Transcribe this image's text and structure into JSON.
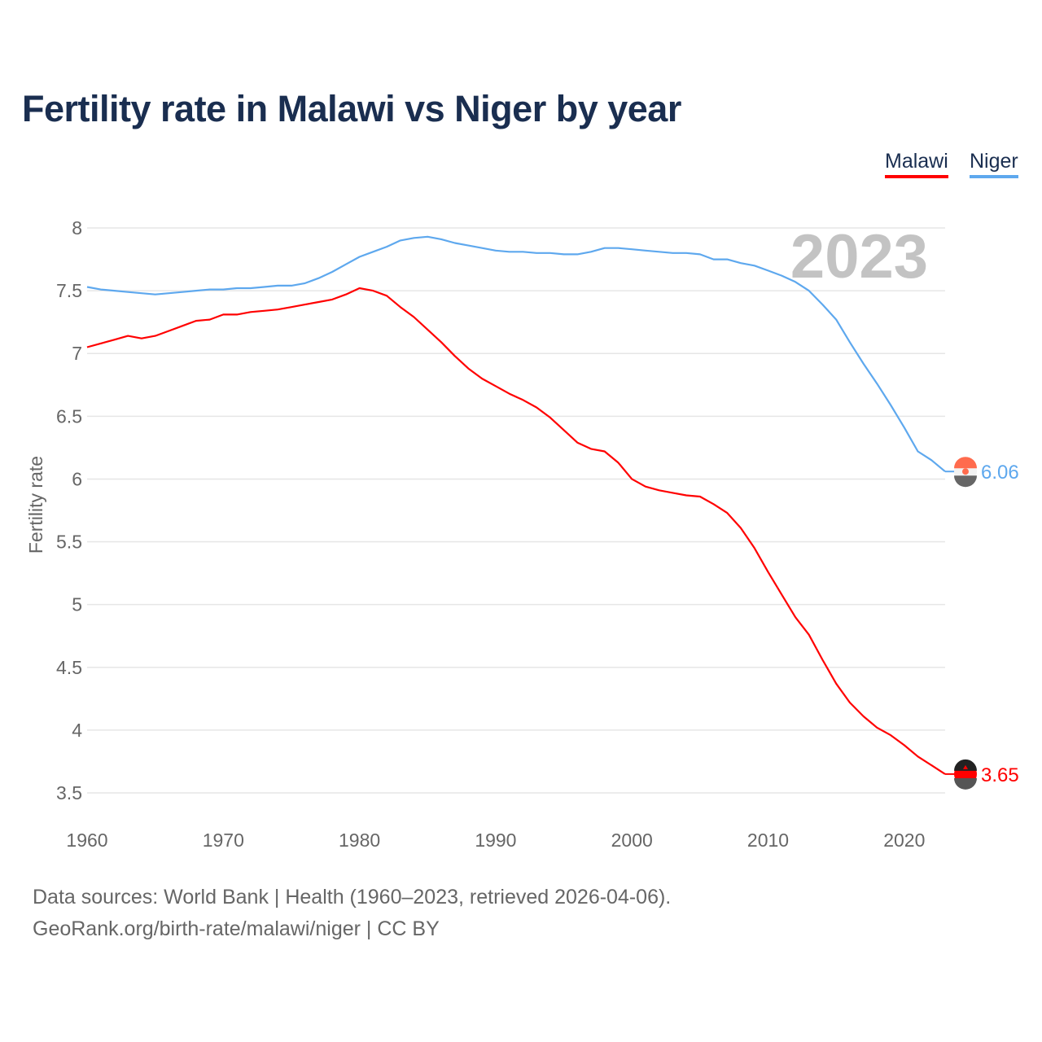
{
  "chart_data": {
    "type": "line",
    "title": "Fertility rate in Malawi vs Niger by year",
    "xlabel": "",
    "ylabel": "Fertility rate",
    "xlim": [
      1960,
      2023
    ],
    "ylim": [
      3.5,
      8
    ],
    "yticks": [
      3.5,
      4,
      4.5,
      5,
      5.5,
      6,
      6.5,
      7,
      7.5,
      8
    ],
    "ytick_labels": [
      "3.5",
      "4",
      "4.5",
      "5",
      "5.5",
      "6",
      "6.5",
      "7",
      "7.5",
      "8"
    ],
    "xticks": [
      1960,
      1970,
      1980,
      1990,
      2000,
      2010,
      2020
    ],
    "xtick_labels": [
      "1960",
      "1970",
      "1980",
      "1990",
      "2000",
      "2010",
      "2020"
    ],
    "grid": true,
    "legend_placement": "top-right",
    "year_overlay": "2023",
    "x": [
      1960,
      1961,
      1962,
      1963,
      1964,
      1965,
      1966,
      1967,
      1968,
      1969,
      1970,
      1971,
      1972,
      1973,
      1974,
      1975,
      1976,
      1977,
      1978,
      1979,
      1980,
      1981,
      1982,
      1983,
      1984,
      1985,
      1986,
      1987,
      1988,
      1989,
      1990,
      1991,
      1992,
      1993,
      1994,
      1995,
      1996,
      1997,
      1998,
      1999,
      2000,
      2001,
      2002,
      2003,
      2004,
      2005,
      2006,
      2007,
      2008,
      2009,
      2010,
      2011,
      2012,
      2013,
      2014,
      2015,
      2016,
      2017,
      2018,
      2019,
      2020,
      2021,
      2022,
      2023
    ],
    "series": [
      {
        "name": "Malawi",
        "color": "#ff0000",
        "end_label": "3.65",
        "values": [
          7.05,
          7.08,
          7.11,
          7.14,
          7.12,
          7.14,
          7.18,
          7.22,
          7.26,
          7.27,
          7.31,
          7.31,
          7.33,
          7.34,
          7.35,
          7.37,
          7.39,
          7.41,
          7.43,
          7.47,
          7.52,
          7.5,
          7.46,
          7.37,
          7.29,
          7.19,
          7.09,
          6.98,
          6.88,
          6.8,
          6.74,
          6.68,
          6.63,
          6.57,
          6.49,
          6.39,
          6.29,
          6.24,
          6.22,
          6.13,
          6.0,
          5.94,
          5.91,
          5.89,
          5.87,
          5.86,
          5.8,
          5.73,
          5.61,
          5.45,
          5.26,
          5.08,
          4.9,
          4.76,
          4.56,
          4.37,
          4.22,
          4.11,
          4.02,
          3.96,
          3.88,
          3.79,
          3.72,
          3.65
        ]
      },
      {
        "name": "Niger",
        "color": "#5ea8ee",
        "end_label": "6.06",
        "values": [
          7.53,
          7.51,
          7.5,
          7.49,
          7.48,
          7.47,
          7.48,
          7.49,
          7.5,
          7.51,
          7.51,
          7.52,
          7.52,
          7.53,
          7.54,
          7.54,
          7.56,
          7.6,
          7.65,
          7.71,
          7.77,
          7.81,
          7.85,
          7.9,
          7.92,
          7.93,
          7.91,
          7.88,
          7.86,
          7.84,
          7.82,
          7.81,
          7.81,
          7.8,
          7.8,
          7.79,
          7.79,
          7.81,
          7.84,
          7.84,
          7.83,
          7.82,
          7.81,
          7.8,
          7.8,
          7.79,
          7.75,
          7.75,
          7.72,
          7.7,
          7.66,
          7.62,
          7.57,
          7.5,
          7.39,
          7.27,
          7.09,
          6.92,
          6.76,
          6.59,
          6.41,
          6.22,
          6.15,
          6.06
        ]
      }
    ]
  },
  "legend": {
    "malawi": "Malawi",
    "niger": "Niger"
  },
  "footer": {
    "sources": "Data sources: World Bank | Health (1960–2023, retrieved 2026-04-06).",
    "credit": "GeoRank.org/birth-rate/malawi/niger | CC BY"
  }
}
